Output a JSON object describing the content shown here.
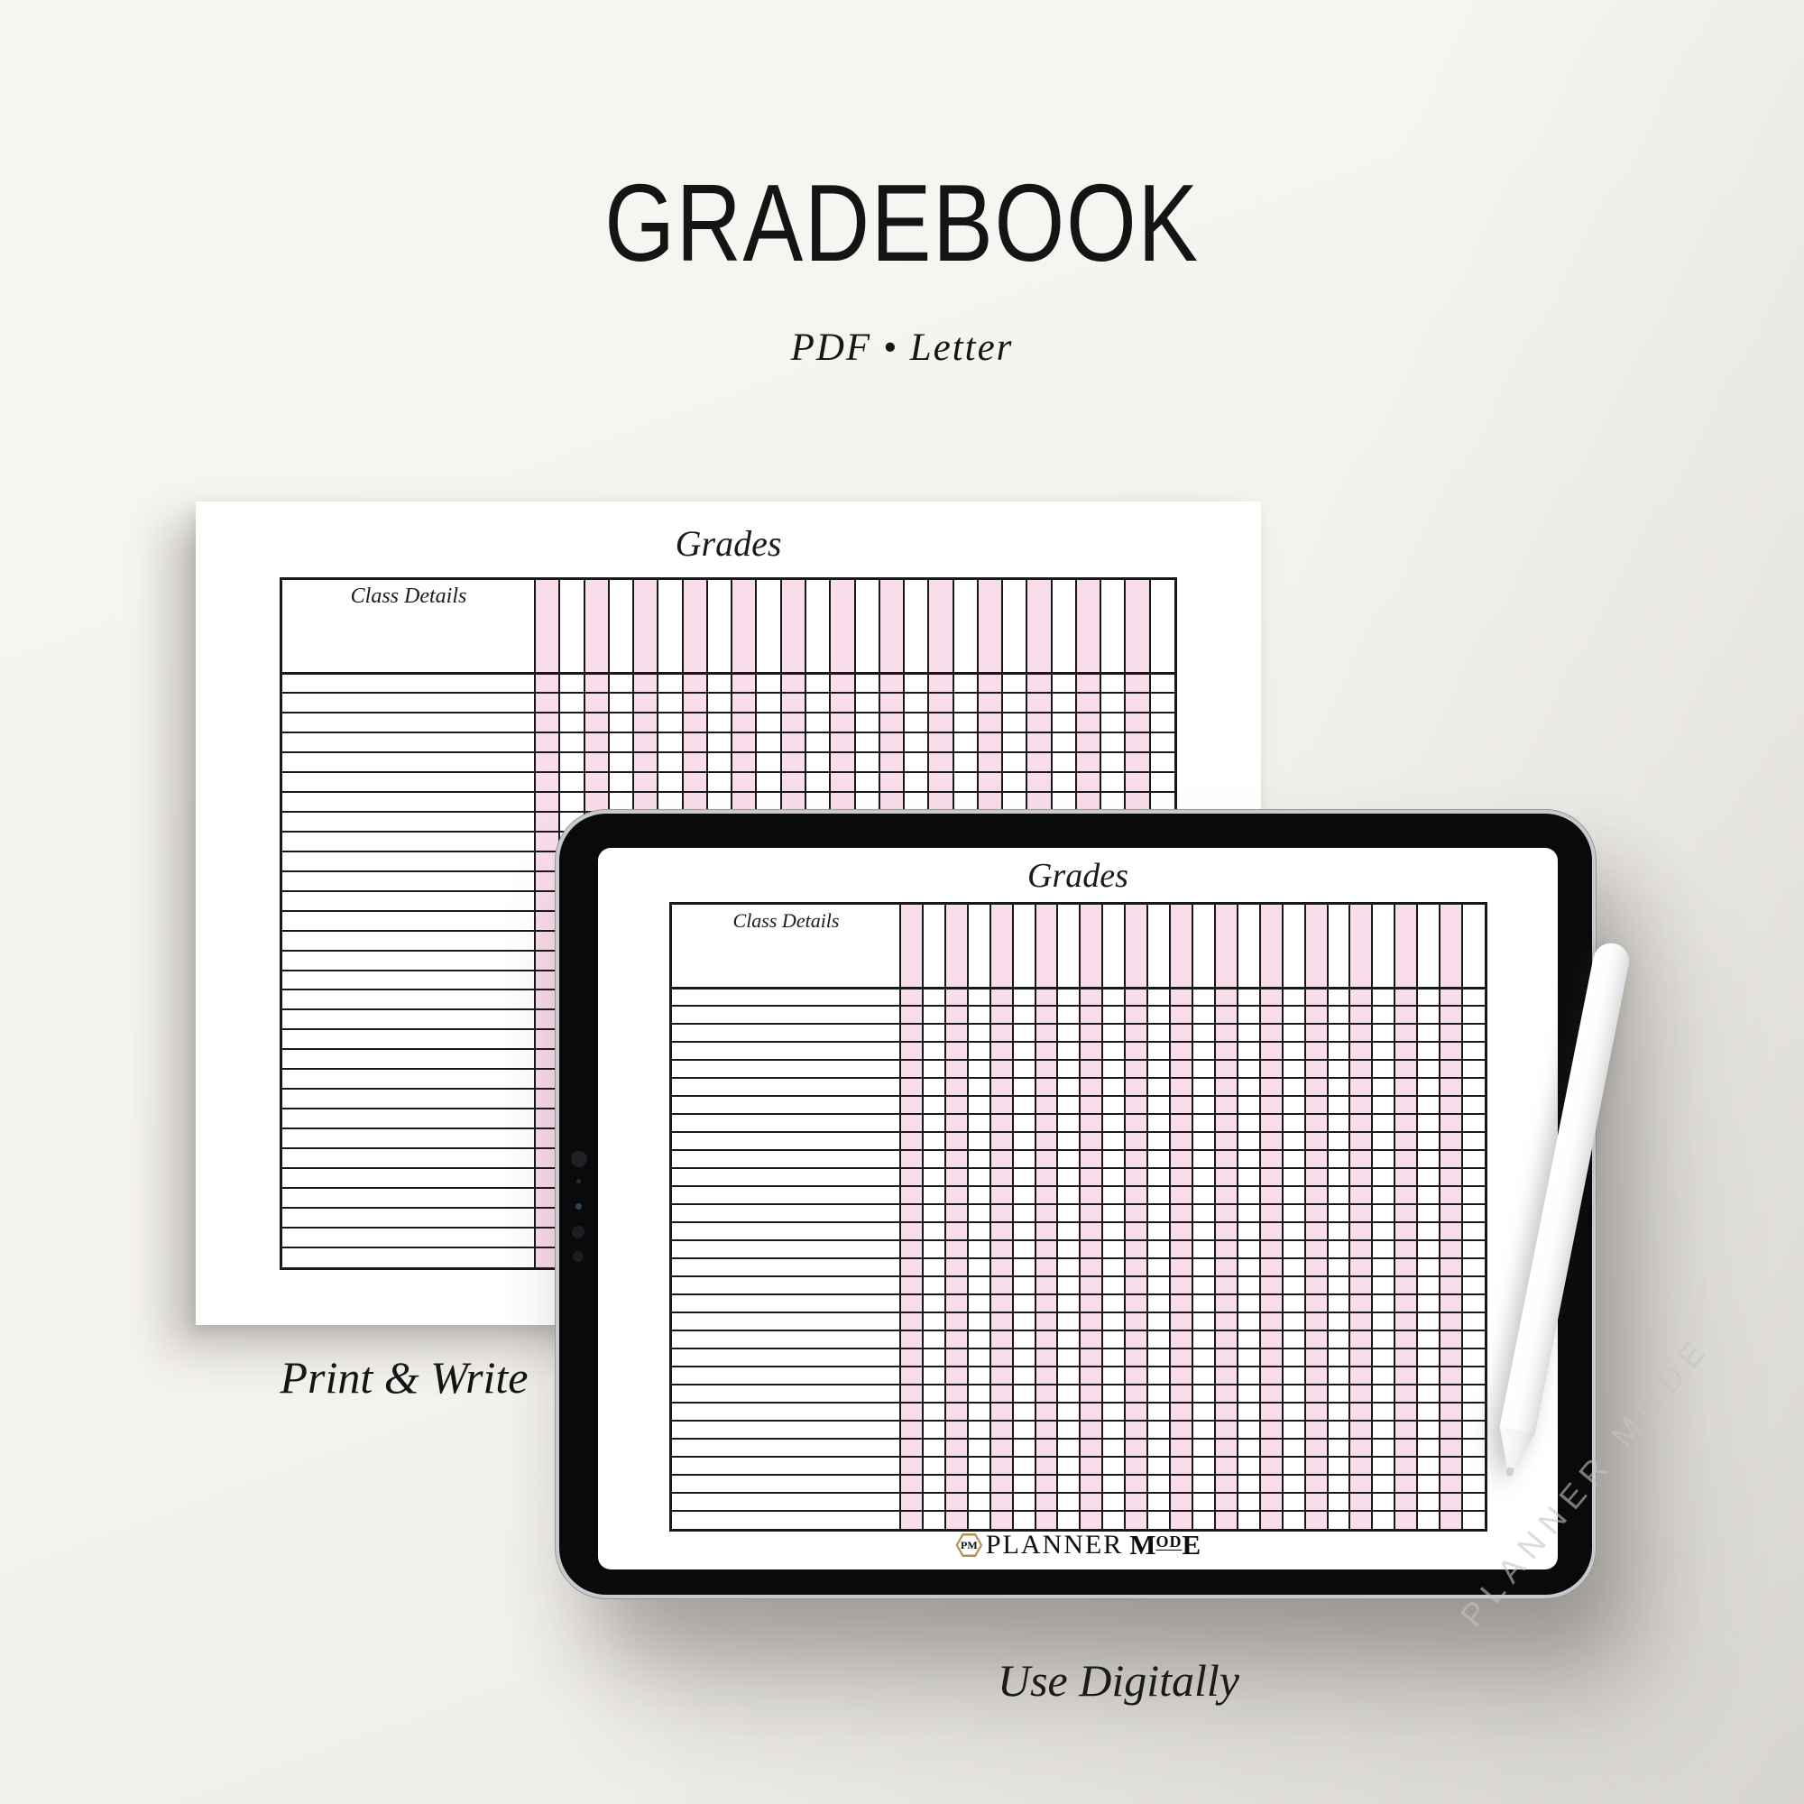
{
  "title": "GRADEBOOK",
  "subtitle": "PDF  •  Letter",
  "captions": {
    "paper": "Print & Write",
    "tablet": "Use Digitally"
  },
  "sheet": {
    "heading": "Grades",
    "corner_label": "Class Details",
    "columns": 26,
    "rows": 30
  },
  "logo": {
    "monogram": "PM",
    "word": "PLANNER",
    "m": "M",
    "od": "OD",
    "e": "E"
  },
  "watermark": "PLANNER MODE",
  "colors": {
    "pink": "#f9dcea",
    "line": "#191919",
    "paper": "#ffffff",
    "background": "#f5f3ef",
    "gold": "#b5924b",
    "ink": "#141414"
  }
}
